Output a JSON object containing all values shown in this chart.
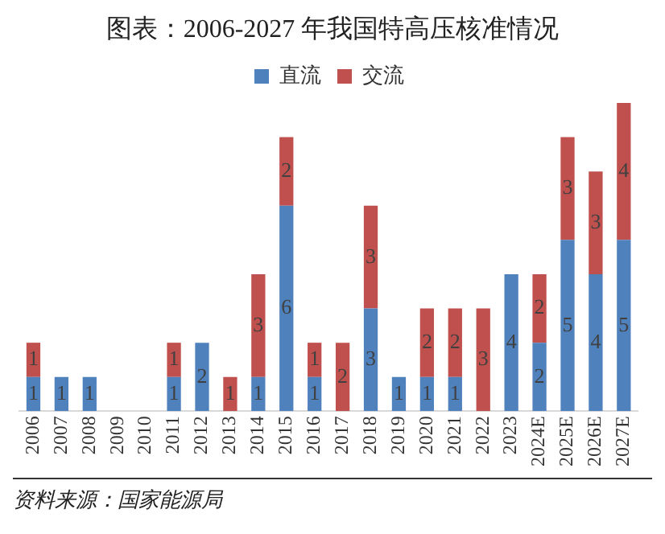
{
  "chart_data": {
    "type": "bar",
    "title": "图表：2006-2027 年我国特高压核准情况",
    "categories": [
      "2006",
      "2007",
      "2008",
      "2009",
      "2010",
      "2011",
      "2012",
      "2013",
      "2014",
      "2015",
      "2016",
      "2017",
      "2018",
      "2019",
      "2020",
      "2021",
      "2022",
      "2023",
      "2024E",
      "2025E",
      "2026E",
      "2027E"
    ],
    "series": [
      {
        "name": "直流",
        "color": "#4f81bd",
        "values": [
          1,
          1,
          1,
          null,
          null,
          1,
          2,
          null,
          1,
          6,
          1,
          null,
          3,
          1,
          1,
          1,
          null,
          4,
          2,
          5,
          4,
          5
        ]
      },
      {
        "name": "交流",
        "color": "#c0504d",
        "values": [
          1,
          null,
          null,
          null,
          null,
          1,
          null,
          1,
          3,
          2,
          1,
          2,
          3,
          null,
          2,
          2,
          3,
          null,
          2,
          3,
          3,
          4
        ]
      }
    ],
    "stacked": true,
    "data_labels": true,
    "legend": "top",
    "grid": false,
    "tick_labels": "x",
    "annotations": [
      "资料来源：国家能源局"
    ]
  }
}
